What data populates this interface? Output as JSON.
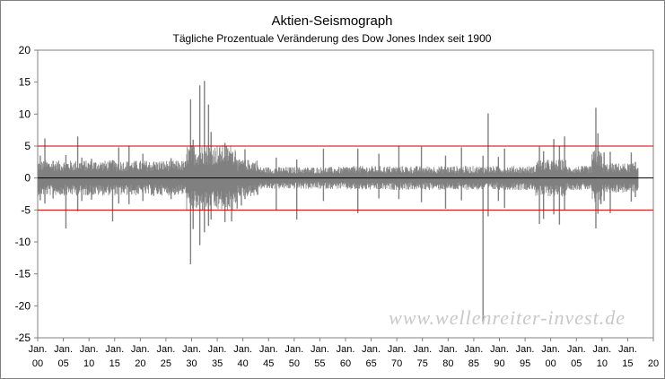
{
  "chart_data": {
    "type": "line",
    "title": "Aktien-Seismograph",
    "subtitle": "Tägliche Prozentuale Veränderung des Dow  Jones Index seit 1900",
    "xlabel": "",
    "ylabel": "",
    "xlim": [
      1900,
      2020
    ],
    "ylim": [
      -25,
      20
    ],
    "y_ticks": [
      20,
      15,
      10,
      5,
      0,
      -5,
      -10,
      -15,
      -20,
      -25
    ],
    "x_ticks": [
      {
        "top": "Jan.",
        "bottom": "00",
        "year": 1900
      },
      {
        "top": "Jan.",
        "bottom": "05",
        "year": 1905
      },
      {
        "top": "Jan.",
        "bottom": "10",
        "year": 1910
      },
      {
        "top": "Jan.",
        "bottom": "15",
        "year": 1915
      },
      {
        "top": "Jan.",
        "bottom": "20",
        "year": 1920
      },
      {
        "top": "Jan.",
        "bottom": "25",
        "year": 1925
      },
      {
        "top": "Jan.",
        "bottom": "30",
        "year": 1930
      },
      {
        "top": "Jan.",
        "bottom": "35",
        "year": 1935
      },
      {
        "top": "Jan.",
        "bottom": "40",
        "year": 1940
      },
      {
        "top": "Jan.",
        "bottom": "45",
        "year": 1945
      },
      {
        "top": "Jan.",
        "bottom": "50",
        "year": 1950
      },
      {
        "top": "Jan.",
        "bottom": "55",
        "year": 1955
      },
      {
        "top": "Jan.",
        "bottom": "60",
        "year": 1960
      },
      {
        "top": "Jan.",
        "bottom": "65",
        "year": 1965
      },
      {
        "top": "Jan.",
        "bottom": "70",
        "year": 1970
      },
      {
        "top": "Jan.",
        "bottom": "75",
        "year": 1975
      },
      {
        "top": "Jan.",
        "bottom": "80",
        "year": 1980
      },
      {
        "top": "Jan.",
        "bottom": "85",
        "year": 1985
      },
      {
        "top": "Jan.",
        "bottom": "90",
        "year": 1990
      },
      {
        "top": "Jan.",
        "bottom": "95",
        "year": 1995
      },
      {
        "top": "Jan.",
        "bottom": "00",
        "year": 2000
      },
      {
        "top": "Jan.",
        "bottom": "05",
        "year": 2005
      },
      {
        "top": "Jan.",
        "bottom": "10",
        "year": 2010
      },
      {
        "top": "Jan.",
        "bottom": "15",
        "year": 2015
      },
      {
        "top": "",
        "bottom": "20",
        "year": 2020
      }
    ],
    "reference_lines": [
      {
        "y": 5,
        "color": "#cc0000"
      },
      {
        "y": -5,
        "color": "#cc0000"
      },
      {
        "y": 0,
        "color": "#000000"
      }
    ],
    "grid": false,
    "series_color": "#808080",
    "series": [
      {
        "x": [
          1900.5,
          1901.4,
          1903.0,
          1905.5,
          1907.8,
          1908.6,
          1910.5,
          1914.6,
          1915.8,
          1917.8,
          1920.5,
          1922.6,
          1926.0,
          1929.8,
          1930.3,
          1931.6,
          1932.5,
          1933.3,
          1933.8,
          1936.5,
          1937.8,
          1939.7,
          1940.4,
          1946.5,
          1950.5,
          1955.7,
          1962.4,
          1966.5,
          1970.4,
          1974.8,
          1979.5,
          1982.6,
          1986.8,
          1987.8,
          1989.8,
          1991.0,
          1997.8,
          1998.6,
          2000.6,
          2001.7,
          2002.7,
          2008.8,
          2009.2,
          2010.4,
          2011.6,
          2015.7,
          2016.5
        ],
        "high": [
          3.5,
          6.2,
          2.7,
          3.6,
          6.5,
          3.2,
          3.0,
          2.8,
          4.8,
          5.0,
          3.8,
          2.4,
          3.1,
          12.3,
          6.0,
          14.5,
          15.2,
          11.5,
          7.2,
          5.5,
          3.8,
          2.6,
          4.5,
          3.2,
          2.9,
          4.6,
          4.6,
          3.8,
          5.0,
          4.9,
          3.5,
          4.8,
          3.5,
          10.1,
          3.3,
          4.6,
          4.9,
          4.2,
          6.1,
          5.0,
          6.5,
          11.0,
          7.0,
          4.0,
          4.1,
          4.0,
          2.5
        ],
        "low": [
          -3.5,
          -4.0,
          -3.2,
          -7.9,
          -5.2,
          -3.6,
          -3.4,
          -6.8,
          -4.0,
          -4.1,
          -3.6,
          -2.8,
          -3.3,
          -13.5,
          -8.0,
          -10.5,
          -8.5,
          -7.5,
          -6.5,
          -6.9,
          -6.8,
          -4.3,
          -3.3,
          -5.0,
          -6.5,
          -3.6,
          -5.5,
          -3.2,
          -3.3,
          -3.8,
          -4.8,
          -3.5,
          -22.6,
          -6.0,
          -3.6,
          -4.7,
          -7.2,
          -6.4,
          -5.7,
          -7.3,
          -5.0,
          -7.9,
          -5.6,
          -3.6,
          -5.5,
          -3.7,
          -3.0
        ]
      }
    ]
  },
  "watermark": "www.wellenreiter-invest.de"
}
